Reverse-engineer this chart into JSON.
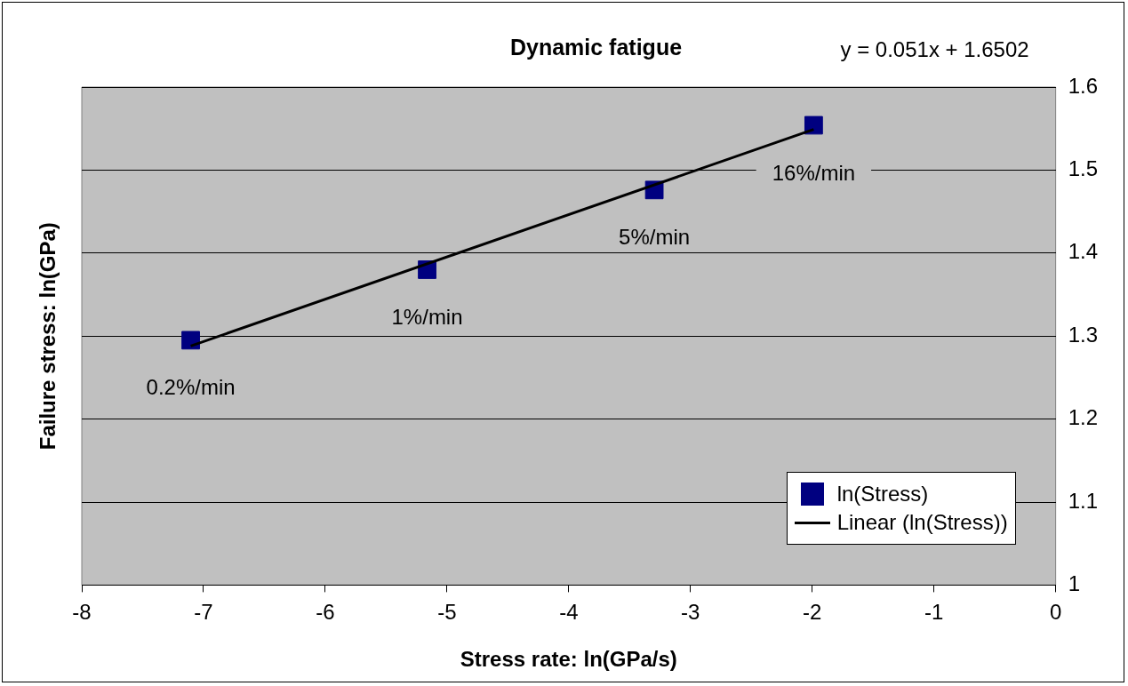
{
  "chart_data": {
    "type": "scatter",
    "title": "Dynamic fatigue",
    "xlabel": "Stress rate: ln(GPa/s)",
    "ylabel": "Failure stress: ln(GPa)",
    "series": [
      {
        "name": "ln(Stress)",
        "type": "scatter",
        "marker": "square",
        "color": "#000080",
        "x": [
          -7.105,
          -5.163,
          -3.297,
          -1.988
        ],
        "values": [
          1.295,
          1.38,
          1.476,
          1.554
        ]
      },
      {
        "name": "Linear (ln(Stress))",
        "type": "line",
        "marker": "none",
        "color": "#000000",
        "x": [
          -7.105,
          -1.988
        ],
        "values": [
          1.288,
          1.549
        ]
      }
    ],
    "annotations": [
      "y = 0.051x + 1.6502",
      {
        "text": "0.2%/min",
        "x": -7.105,
        "y": 1.295
      },
      {
        "text": "1%/min",
        "x": -5.163,
        "y": 1.38
      },
      {
        "text": "5%/min",
        "x": -3.297,
        "y": 1.476
      },
      {
        "text": "16%/min",
        "x": -1.988,
        "y": 1.554
      }
    ],
    "xlim": [
      -8,
      0
    ],
    "xticks": [
      -8,
      -7,
      -6,
      -5,
      -4,
      -3,
      -2,
      -1,
      0
    ],
    "ylim": [
      1,
      1.6
    ],
    "yticks": [
      1,
      1.1,
      1.2,
      1.3,
      1.4,
      1.5,
      1.6
    ],
    "grid": "y",
    "legend": "bottom right"
  }
}
